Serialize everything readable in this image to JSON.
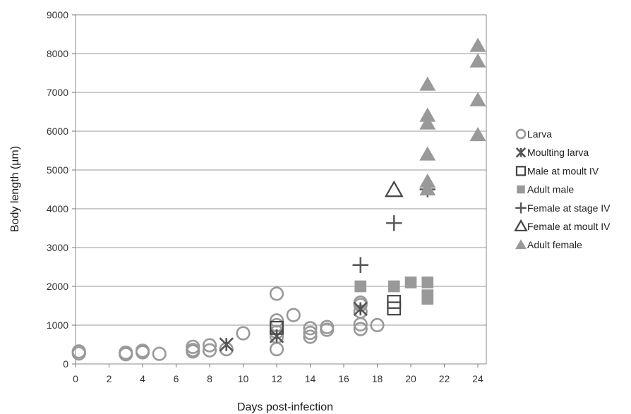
{
  "chart_data": {
    "type": "scatter",
    "title": "",
    "xlabel": "Days post-infection",
    "ylabel": "Body length (µm)",
    "xlim": [
      0,
      25
    ],
    "ylim": [
      0,
      9000
    ],
    "xticks": [
      "0",
      "2",
      "4",
      "6",
      "8",
      "10",
      "12",
      "14",
      "16",
      "18",
      "20",
      "22",
      "24"
    ],
    "yticks": [
      "0",
      "1000",
      "2000",
      "3000",
      "4000",
      "5000",
      "6000",
      "7000",
      "8000",
      "9000"
    ],
    "grid": "horizontal",
    "legend_position": "right",
    "series": [
      {
        "name": "Larva",
        "marker": "open-circle",
        "color": "#999999",
        "points": [
          [
            0.2,
            320
          ],
          [
            0.2,
            270
          ],
          [
            3,
            290
          ],
          [
            3,
            250
          ],
          [
            4,
            340
          ],
          [
            4,
            300
          ],
          [
            5,
            260
          ],
          [
            7,
            440
          ],
          [
            7,
            360
          ],
          [
            7,
            320
          ],
          [
            8,
            480
          ],
          [
            8,
            350
          ],
          [
            9,
            380
          ],
          [
            10,
            790
          ],
          [
            12,
            1810
          ],
          [
            12,
            1120
          ],
          [
            12,
            1000
          ],
          [
            12,
            820
          ],
          [
            12,
            700
          ],
          [
            12,
            380
          ],
          [
            13,
            1260
          ],
          [
            14,
            920
          ],
          [
            14,
            800
          ],
          [
            14,
            700
          ],
          [
            15,
            950
          ],
          [
            15,
            880
          ],
          [
            17,
            1580
          ],
          [
            17,
            1520
          ],
          [
            17,
            1350
          ],
          [
            17,
            1020
          ],
          [
            17,
            900
          ],
          [
            18,
            1000
          ]
        ]
      },
      {
        "name": "Moulting larva",
        "marker": "asterisk",
        "color": "#555555",
        "points": [
          [
            9,
            500
          ],
          [
            12,
            720
          ],
          [
            17,
            1420
          ]
        ]
      },
      {
        "name": "Male at moult IV",
        "marker": "open-square",
        "color": "#444444",
        "points": [
          [
            12,
            930
          ],
          [
            19,
            1600
          ],
          [
            19,
            1430
          ]
        ]
      },
      {
        "name": "Adult male",
        "marker": "filled-square",
        "color": "#999999",
        "points": [
          [
            17,
            2000
          ],
          [
            19,
            2000
          ],
          [
            20,
            2100
          ],
          [
            21,
            2100
          ],
          [
            21,
            1770
          ],
          [
            21,
            1680
          ]
        ]
      },
      {
        "name": "Female at stage IV",
        "marker": "plus",
        "color": "#555555",
        "points": [
          [
            17,
            2550
          ],
          [
            19,
            3630
          ],
          [
            21,
            4500
          ]
        ]
      },
      {
        "name": "Female at moult IV",
        "marker": "open-triangle",
        "color": "#444444",
        "points": [
          [
            19,
            4480
          ]
        ]
      },
      {
        "name": "Adult female",
        "marker": "filled-triangle",
        "color": "#999999",
        "points": [
          [
            21,
            7200
          ],
          [
            21,
            6400
          ],
          [
            21,
            6200
          ],
          [
            21,
            5400
          ],
          [
            21,
            4700
          ],
          [
            21,
            4500
          ],
          [
            24,
            8200
          ],
          [
            24,
            7800
          ],
          [
            24,
            6800
          ],
          [
            24,
            5900
          ]
        ]
      }
    ]
  }
}
